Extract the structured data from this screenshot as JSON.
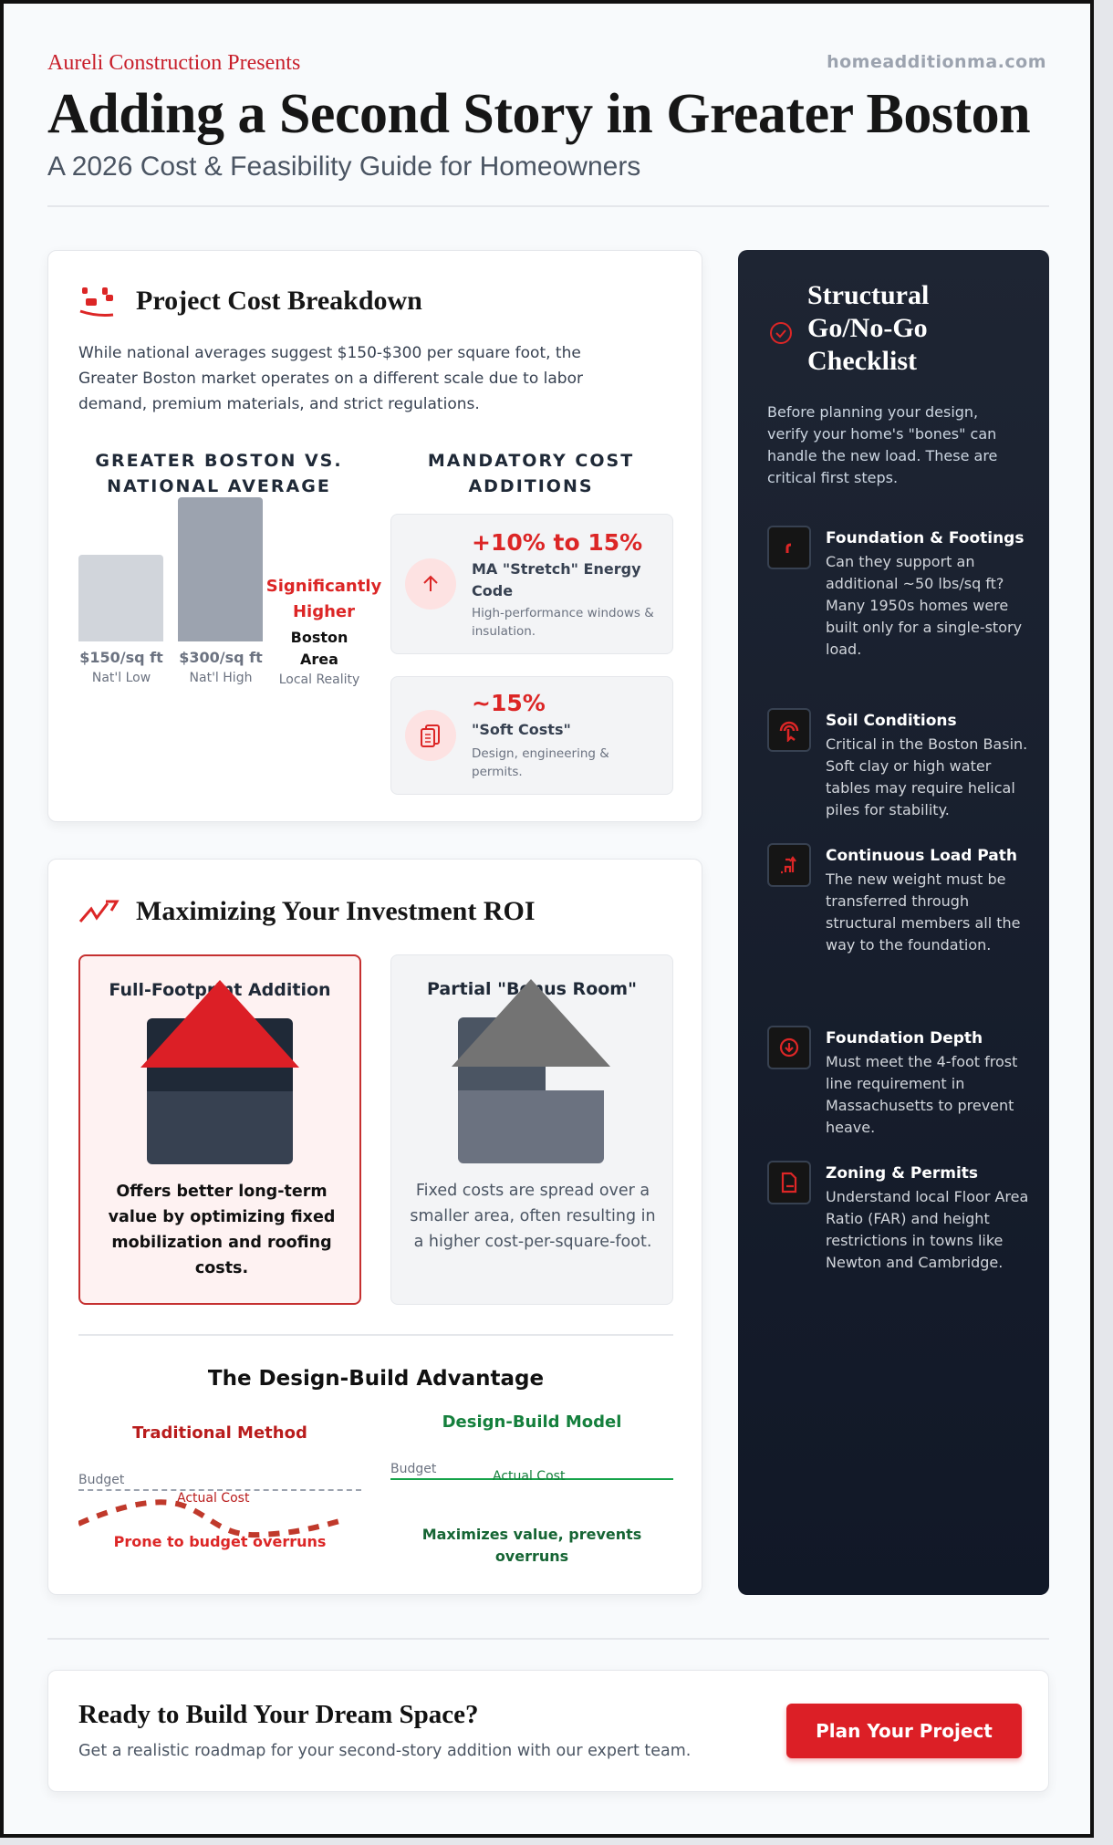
{
  "header": {
    "presents": "Aureli Construction Presents",
    "website": "homeadditionma.com",
    "title": "Adding a Second Story in Greater Boston",
    "subtitle": "A 2026 Cost & Feasibility Guide for Homeowners"
  },
  "cost": {
    "icon": "money-icon",
    "title": "Project Cost Breakdown",
    "intro": "While national averages suggest $150-$300 per square foot, the Greater Boston market operates on a different scale due to labor demand, premium materials, and strict regulations.",
    "comparison": {
      "heading": "GREATER BOSTON VS. NATIONAL AVERAGE",
      "bars": [
        {
          "value_label": "$150/sq ft",
          "label": "Nat'l Low",
          "value": 150,
          "color": "#d1d5db"
        },
        {
          "value_label": "$300/sq ft",
          "label": "Nat'l High",
          "value": 300,
          "color": "#9ca3af"
        }
      ],
      "boston": {
        "value_label": "Significantly Higher",
        "name": "Boston Area",
        "label": "Local Reality"
      }
    },
    "additions": {
      "heading": "MANDATORY COST ADDITIONS",
      "items": [
        {
          "icon": "arrow-up-icon",
          "value": "+10% to 15%",
          "title": "MA \"Stretch\" Energy Code",
          "desc": "High-performance windows & insulation."
        },
        {
          "icon": "clipboard-icon",
          "value": "~15%",
          "title": "\"Soft Costs\"",
          "desc": "Design, engineering & permits."
        }
      ]
    }
  },
  "checklist": {
    "icon": "check-circle-icon",
    "title": "Structural Go/No-Go Checklist",
    "intro": "Before planning your design, verify your home's \"bones\" can handle the new load. These are critical first steps.",
    "items": [
      {
        "icon": "foundation-icon",
        "title": "Foundation & Footings",
        "desc": "Can they support an additional ~50 lbs/sq ft? Many 1950s homes were built only for a single-story load."
      },
      {
        "icon": "soil-touch-icon",
        "title": "Soil Conditions",
        "desc": "Critical in the Boston Basin. Soft clay or high water tables may require helical piles for stability."
      },
      {
        "icon": "load-path-icon",
        "title": "Continuous Load Path",
        "desc": "The new weight must be transferred through structural members all the way to the foundation."
      },
      {
        "icon": "arrow-down-circle-icon",
        "title": "Foundation Depth",
        "desc": "Must meet the 4-foot frost line requirement in Massachusetts to prevent heave."
      },
      {
        "icon": "document-icon",
        "title": "Zoning & Permits",
        "desc": "Understand local Floor Area Ratio (FAR) and height restrictions in towns like Newton and Cambridge."
      }
    ]
  },
  "roi": {
    "icon": "trending-up-icon",
    "title": "Maximizing Your Investment ROI",
    "options": [
      {
        "title": "Full-Footprint Addition",
        "desc": "Offers better long-term value by optimizing fixed mobilization and roofing costs.",
        "highlighted": true
      },
      {
        "title": "Partial \"Bonus Room\"",
        "desc": "Fixed costs are spread over a smaller area, often resulting in a higher cost-per-square-foot.",
        "highlighted": false
      }
    ],
    "design_build": {
      "title": "The Design-Build Advantage",
      "traditional": {
        "title": "Traditional Method",
        "budget": "Budget",
        "actual": "Actual Cost",
        "caption": "Prone to budget overruns",
        "color": "#b91c1c"
      },
      "model": {
        "title": "Design-Build Model",
        "budget": "Budget",
        "actual": "Actual Cost",
        "caption": "Maximizes value, prevents overruns",
        "color": "#15803d"
      }
    }
  },
  "cta": {
    "title": "Ready to Build Your Dream Space?",
    "subtitle": "Get a realistic roadmap for your second-story addition with our expert team.",
    "button": "Plan Your Project"
  },
  "colors": {
    "accent": "#dc1f26",
    "dark": "#1e2533",
    "green": "#15803d"
  }
}
